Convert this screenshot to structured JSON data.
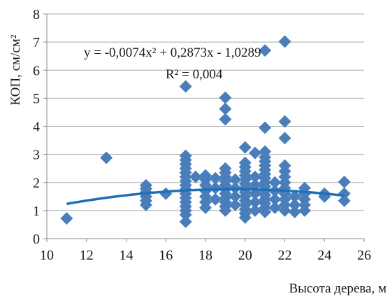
{
  "chart_data": {
    "type": "scatter",
    "title": "",
    "xlabel": "Высота дерева, м",
    "ylabel": "КОП, см/см²",
    "xlim": [
      10,
      26
    ],
    "ylim": [
      0,
      8
    ],
    "x_ticks": [
      10,
      12,
      14,
      16,
      18,
      20,
      22,
      24,
      26
    ],
    "y_ticks": [
      0,
      1,
      2,
      3,
      4,
      5,
      6,
      7,
      8
    ],
    "grid": "horizontal",
    "marker_color": "#4a7ebb",
    "trend_color": "#1f6fb5",
    "trendline": {
      "type": "polynomial",
      "coefficients": [
        -0.0074,
        0.2873,
        -1.0289
      ],
      "x_range": [
        11,
        25
      ],
      "equation": "y = -0,0074x² + 0,2873x - 1,0289",
      "r_squared": "R² = 0,004"
    },
    "points": [
      [
        11,
        0.72
      ],
      [
        13,
        2.88
      ],
      [
        15,
        1.2
      ],
      [
        15,
        1.35
      ],
      [
        15,
        1.5
      ],
      [
        15,
        1.65
      ],
      [
        15,
        1.78
      ],
      [
        15,
        1.9
      ],
      [
        16,
        1.6
      ],
      [
        17,
        0.6
      ],
      [
        17,
        0.85
      ],
      [
        17,
        1.0
      ],
      [
        17,
        1.15
      ],
      [
        17,
        1.3
      ],
      [
        17,
        1.45
      ],
      [
        17,
        1.6
      ],
      [
        17,
        1.75
      ],
      [
        17,
        1.9
      ],
      [
        17,
        2.05
      ],
      [
        17,
        2.2
      ],
      [
        17,
        2.35
      ],
      [
        17,
        2.5
      ],
      [
        17,
        2.65
      ],
      [
        17,
        2.8
      ],
      [
        17,
        2.95
      ],
      [
        17,
        5.42
      ],
      [
        17.5,
        2.2
      ],
      [
        18,
        1.1
      ],
      [
        18,
        1.3
      ],
      [
        18,
        1.5
      ],
      [
        18,
        1.7
      ],
      [
        18,
        1.9
      ],
      [
        18,
        2.1
      ],
      [
        18,
        2.25
      ],
      [
        18.5,
        1.4
      ],
      [
        18.5,
        1.8
      ],
      [
        18.5,
        2.15
      ],
      [
        19,
        1.0
      ],
      [
        19,
        1.15
      ],
      [
        19,
        1.3
      ],
      [
        19,
        1.45
      ],
      [
        19,
        1.6
      ],
      [
        19,
        1.75
      ],
      [
        19,
        1.9
      ],
      [
        19,
        2.05
      ],
      [
        19,
        2.2
      ],
      [
        19,
        2.35
      ],
      [
        19,
        2.5
      ],
      [
        19,
        4.25
      ],
      [
        19,
        4.62
      ],
      [
        19,
        5.02
      ],
      [
        19.5,
        1.2
      ],
      [
        19.5,
        1.5
      ],
      [
        19.5,
        1.8
      ],
      [
        19.5,
        2.1
      ],
      [
        20,
        0.75
      ],
      [
        20,
        0.9
      ],
      [
        20,
        1.05
      ],
      [
        20,
        1.2
      ],
      [
        20,
        1.35
      ],
      [
        20,
        1.5
      ],
      [
        20,
        1.65
      ],
      [
        20,
        1.8
      ],
      [
        20,
        1.95
      ],
      [
        20,
        2.1
      ],
      [
        20,
        2.25
      ],
      [
        20,
        2.4
      ],
      [
        20,
        2.55
      ],
      [
        20,
        2.7
      ],
      [
        20,
        3.25
      ],
      [
        20.5,
        1.0
      ],
      [
        20.5,
        1.3
      ],
      [
        20.5,
        1.6
      ],
      [
        20.5,
        1.9
      ],
      [
        20.5,
        2.2
      ],
      [
        20.5,
        3.05
      ],
      [
        21,
        0.95
      ],
      [
        21,
        1.1
      ],
      [
        21,
        1.25
      ],
      [
        21,
        1.4
      ],
      [
        21,
        1.55
      ],
      [
        21,
        1.7
      ],
      [
        21,
        1.85
      ],
      [
        21,
        2.0
      ],
      [
        21,
        2.15
      ],
      [
        21,
        2.3
      ],
      [
        21,
        2.45
      ],
      [
        21,
        2.6
      ],
      [
        21,
        2.75
      ],
      [
        21,
        2.9
      ],
      [
        21,
        3.1
      ],
      [
        21,
        3.95
      ],
      [
        21,
        6.7
      ],
      [
        21.5,
        1.1
      ],
      [
        21.5,
        1.4
      ],
      [
        21.5,
        1.7
      ],
      [
        21.5,
        2.0
      ],
      [
        22,
        1.0
      ],
      [
        22,
        1.2
      ],
      [
        22,
        1.4
      ],
      [
        22,
        1.6
      ],
      [
        22,
        1.8
      ],
      [
        22,
        2.0
      ],
      [
        22,
        2.2
      ],
      [
        22,
        2.4
      ],
      [
        22,
        2.6
      ],
      [
        22,
        3.58
      ],
      [
        22,
        4.17
      ],
      [
        22,
        7.02
      ],
      [
        22.5,
        0.95
      ],
      [
        22.5,
        1.2
      ],
      [
        22.5,
        1.5
      ],
      [
        23,
        1.0
      ],
      [
        23,
        1.2
      ],
      [
        23,
        1.4
      ],
      [
        23,
        1.6
      ],
      [
        23,
        1.8
      ],
      [
        24,
        1.5
      ],
      [
        24,
        1.6
      ],
      [
        25,
        1.35
      ],
      [
        25,
        1.6
      ],
      [
        25,
        2.02
      ]
    ]
  }
}
